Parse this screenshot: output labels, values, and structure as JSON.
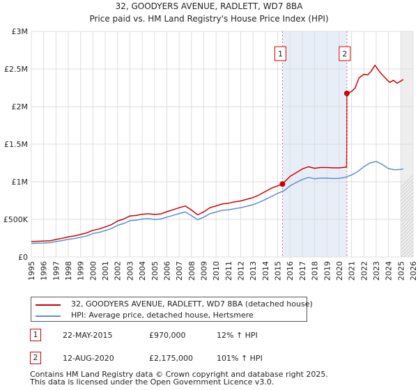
{
  "chart_data": {
    "type": "line",
    "title": "32, GOODYERS AVENUE, RADLETT, WD7 8BA",
    "subtitle": "Price paid vs. HM Land Registry's House Price Index (HPI)",
    "xlim": [
      1995,
      2026
    ],
    "ylim": [
      0,
      3000000
    ],
    "x_ticks": [
      1995,
      1996,
      1997,
      1998,
      1999,
      2000,
      2001,
      2002,
      2003,
      2004,
      2005,
      2006,
      2007,
      2008,
      2009,
      2010,
      2011,
      2012,
      2013,
      2014,
      2015,
      2016,
      2017,
      2018,
      2019,
      2020,
      2021,
      2022,
      2023,
      2024,
      2025,
      2026
    ],
    "y_ticks": [
      {
        "value": 0,
        "label": "£0"
      },
      {
        "value": 500000,
        "label": "£500K"
      },
      {
        "value": 1000000,
        "label": "£1M"
      },
      {
        "value": 1500000,
        "label": "£1.5M"
      },
      {
        "value": 2000000,
        "label": "£2M"
      },
      {
        "value": 2500000,
        "label": "£2.5M"
      },
      {
        "value": 3000000,
        "label": "£3M"
      }
    ],
    "grid": true,
    "forecast_start": 2025.0,
    "series": [
      {
        "name": "32, GOODYERS AVENUE, RADLETT, WD7 8BA (detached house)",
        "color": "#cc0000",
        "x": [
          1995.0,
          1995.5,
          1996.0,
          1996.5,
          1997.0,
          1997.5,
          1998.0,
          1998.5,
          1999.0,
          1999.5,
          2000.0,
          2000.5,
          2001.0,
          2001.5,
          2002.0,
          2002.5,
          2003.0,
          2003.5,
          2004.0,
          2004.5,
          2005.0,
          2005.5,
          2006.0,
          2006.5,
          2007.0,
          2007.5,
          2008.0,
          2008.5,
          2009.0,
          2009.5,
          2010.0,
          2010.5,
          2011.0,
          2011.5,
          2012.0,
          2012.5,
          2013.0,
          2013.5,
          2014.0,
          2014.5,
          2015.0,
          2015.39,
          2015.39,
          2016.0,
          2016.5,
          2017.0,
          2017.5,
          2018.0,
          2018.5,
          2019.0,
          2019.5,
          2020.0,
          2020.6,
          2020.61,
          2020.62,
          2021.0,
          2021.3,
          2021.6,
          2022.0,
          2022.3,
          2022.6,
          2022.9,
          2023.2,
          2023.5,
          2023.8,
          2024.1,
          2024.4,
          2024.7,
          2025.0,
          2025.2
        ],
        "values": [
          205000,
          208000,
          212000,
          215000,
          232000,
          248000,
          268000,
          280000,
          300000,
          320000,
          355000,
          372000,
          400000,
          430000,
          478000,
          505000,
          545000,
          552000,
          568000,
          575000,
          566000,
          572000,
          602000,
          628000,
          655000,
          678000,
          625000,
          560000,
          600000,
          655000,
          680000,
          705000,
          715000,
          732000,
          745000,
          768000,
          790000,
          825000,
          870000,
          915000,
          945000,
          970000,
          970000,
          1070000,
          1120000,
          1170000,
          1200000,
          1180000,
          1190000,
          1190000,
          1185000,
          1185000,
          1195000,
          1500000,
          2175000,
          2200000,
          2250000,
          2380000,
          2430000,
          2420000,
          2470000,
          2550000,
          2480000,
          2420000,
          2370000,
          2320000,
          2350000,
          2310000,
          2340000,
          2360000
        ]
      },
      {
        "name": "HPI: Average price, detached house, Hertsmere",
        "color": "#5b8fd0",
        "x": [
          1995.0,
          1995.5,
          1996.0,
          1996.5,
          1997.0,
          1997.5,
          1998.0,
          1998.5,
          1999.0,
          1999.5,
          2000.0,
          2000.5,
          2001.0,
          2001.5,
          2002.0,
          2002.5,
          2003.0,
          2003.5,
          2004.0,
          2004.5,
          2005.0,
          2005.5,
          2006.0,
          2006.5,
          2007.0,
          2007.5,
          2008.0,
          2008.5,
          2009.0,
          2009.5,
          2010.0,
          2010.5,
          2011.0,
          2011.5,
          2012.0,
          2012.5,
          2013.0,
          2013.5,
          2014.0,
          2014.5,
          2015.0,
          2015.5,
          2016.0,
          2016.5,
          2017.0,
          2017.5,
          2018.0,
          2018.5,
          2019.0,
          2019.5,
          2020.0,
          2020.5,
          2021.0,
          2021.5,
          2022.0,
          2022.5,
          2023.0,
          2023.5,
          2024.0,
          2024.5,
          2025.0,
          2025.2
        ],
        "values": [
          180000,
          182000,
          185000,
          190000,
          205000,
          218000,
          235000,
          245000,
          262000,
          280000,
          312000,
          328000,
          350000,
          378000,
          420000,
          445000,
          482000,
          490000,
          505000,
          510000,
          500000,
          505000,
          530000,
          553000,
          578000,
          598000,
          550000,
          495000,
          530000,
          575000,
          598000,
          620000,
          628000,
          642000,
          655000,
          675000,
          695000,
          728000,
          765000,
          805000,
          845000,
          880000,
          945000,
          990000,
          1030000,
          1058000,
          1040000,
          1048000,
          1048000,
          1043000,
          1045000,
          1060000,
          1090000,
          1135000,
          1200000,
          1250000,
          1270000,
          1230000,
          1175000,
          1160000,
          1165000,
          1170000
        ]
      }
    ],
    "annotations": [
      {
        "label": "1",
        "x": 2015.39,
        "value": 970000
      },
      {
        "label": "2",
        "x": 2020.62,
        "value": 2175000
      }
    ]
  },
  "legend": {
    "property_label": "32, GOODYERS AVENUE, RADLETT, WD7 8BA (detached house)",
    "hpi_label": "HPI: Average price, detached house, Hertsmere"
  },
  "sales": [
    {
      "num": "1",
      "date": "22-MAY-2015",
      "price": "£970,000",
      "hpi": "12% ↑ HPI"
    },
    {
      "num": "2",
      "date": "12-AUG-2020",
      "price": "£2,175,000",
      "hpi": "101% ↑ HPI"
    }
  ],
  "footer": {
    "line1": "Contains HM Land Registry data © Crown copyright and database right 2025.",
    "line2": "This data is licensed under the Open Government Licence v3.0."
  }
}
